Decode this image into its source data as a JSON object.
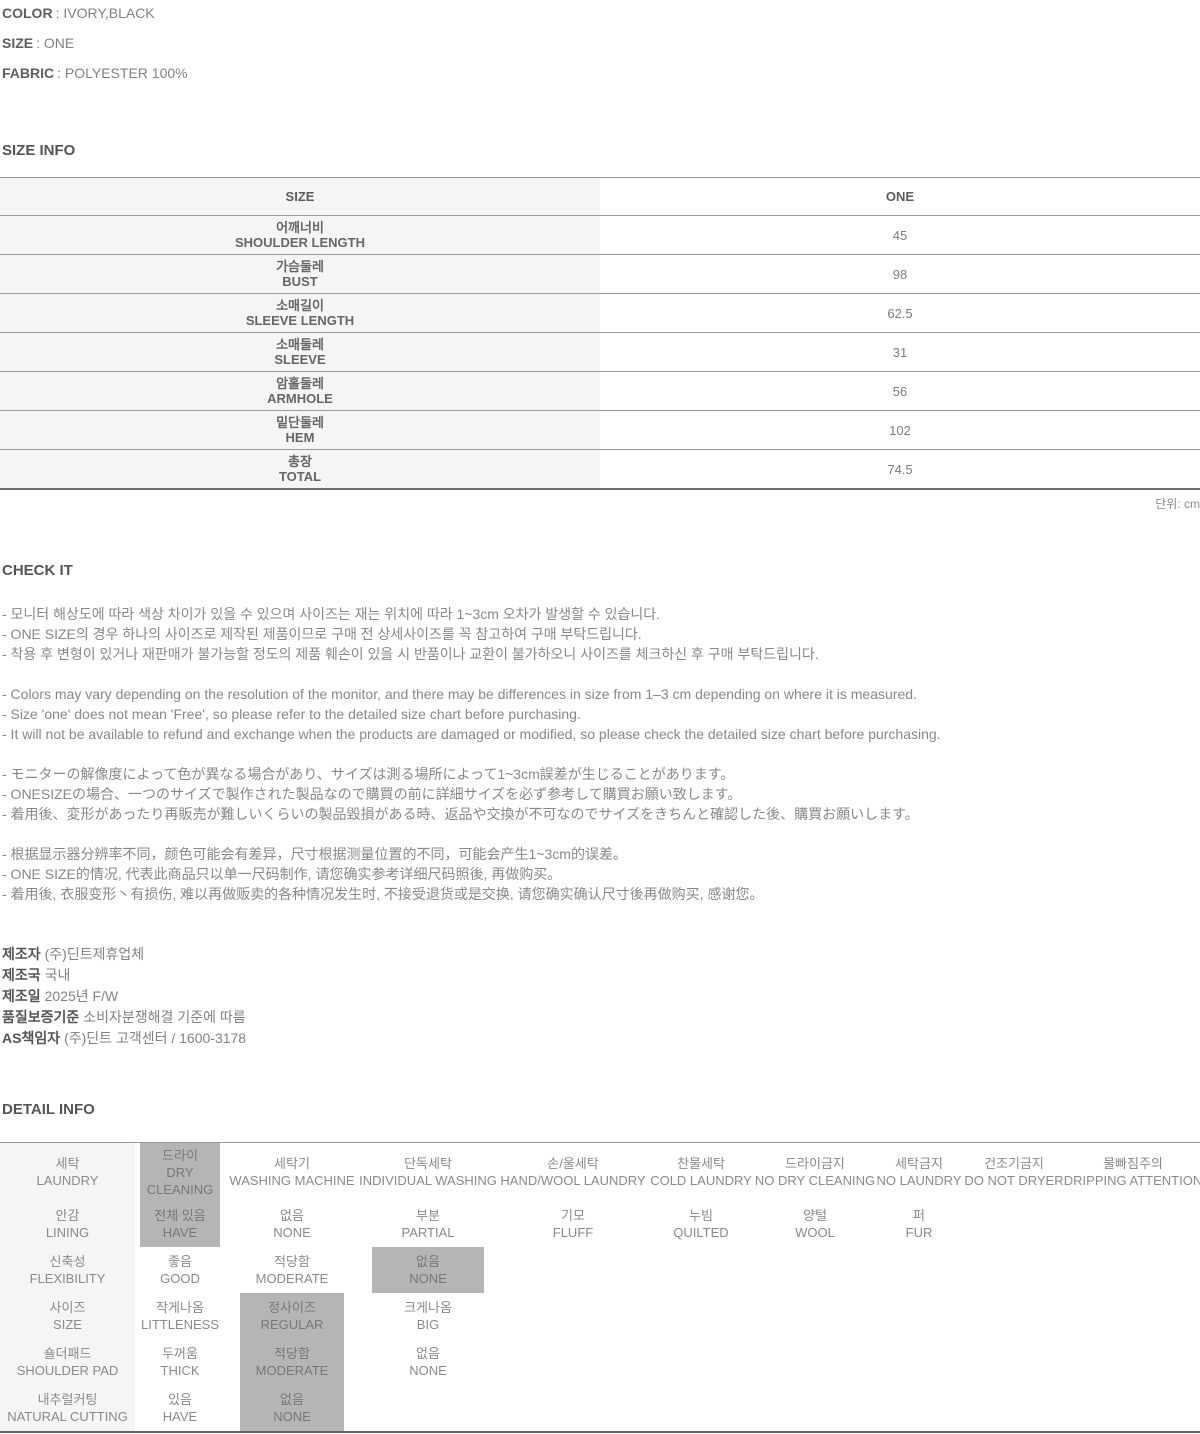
{
  "product_info": {
    "items": [
      {
        "label": "COLOR",
        "value": ": IVORY,BLACK"
      },
      {
        "label": "SIZE",
        "value": ": ONE"
      },
      {
        "label": "FABRIC",
        "value": ": POLYESTER 100%"
      }
    ]
  },
  "size_info": {
    "title": "SIZE INFO",
    "header": {
      "col1": "SIZE",
      "col2": "ONE"
    },
    "rows": [
      {
        "ko": "어깨너비",
        "en": "SHOULDER LENGTH",
        "value": "45"
      },
      {
        "ko": "가슴둘레",
        "en": "BUST",
        "value": "98"
      },
      {
        "ko": "소매길이",
        "en": "SLEEVE LENGTH",
        "value": "62.5"
      },
      {
        "ko": "소매둘레",
        "en": "SLEEVE",
        "value": "31"
      },
      {
        "ko": "암홀둘레",
        "en": "ARMHOLE",
        "value": "56"
      },
      {
        "ko": "밑단둘레",
        "en": "HEM",
        "value": "102"
      },
      {
        "ko": "총장",
        "en": "TOTAL",
        "value": "74.5"
      }
    ],
    "unit_note": "단위: cm"
  },
  "check": {
    "title": "CHECK IT",
    "ko": [
      "- 모니터 해상도에 따라 색상 차이가 있을 수 있으며 사이즈는 재는 위치에 따라 1~3cm 오차가 발생할 수 있습니다.",
      "- ONE SIZE의 경우 하나의 사이즈로 제작된 제품이므로 구매 전 상세사이즈를 꼭 참고하여 구매 부탁드립니다.",
      "- 착용 후 변형이 있거나 재판매가 불가능할 정도의 제품 훼손이 있을 시 반품이나 교환이 불가하오니 사이즈를 체크하신 후 구매 부탁드립니다."
    ],
    "en": [
      "- Colors may vary depending on the resolution of the monitor, and there may be differences in size from 1–3 cm depending on where it is measured.",
      "- Size 'one' does not mean 'Free', so please refer to the detailed size chart before purchasing.",
      "- It will not be available to refund and exchange when the products are damaged or modified, so please check the detailed size chart before purchasing."
    ],
    "ja": [
      "- モニターの解像度によって色が異なる場合があり、サイズは測る場所によって1~3cm誤差が生じることがあります。",
      "- ONESIZEの場合、一つのサイズで製作された製品なので購買の前に詳細サイズを必ず参考して購買お願い致します。",
      "- 着用後、変形があったり再販売が難しいくらいの製品毀損がある時、返品や交換が不可なのでサイズをきちんと確認した後、購買お願いします。"
    ],
    "zh": [
      "- 根据显示器分辨率不同，颜色可能会有差异，尺寸根据测量位置的不同，可能会产生1~3cm的误差。",
      "- ONE SIZE的情况, 代表此商品只以单一尺码制作, 请您确实参考详细尺码照後, 再做购买。",
      "- 着用後, 衣服变形丶有损伤, 难以再做贩卖的各种情况发生时, 不接受退货或是交换, 请您确实确认尺寸後再做购买, 感谢您。"
    ]
  },
  "manufacturer": {
    "items": [
      {
        "label": "제조자",
        "value": "(주)딘트제휴업체"
      },
      {
        "label": "제조국",
        "value": "국내"
      },
      {
        "label": "제조일",
        "value": "2025년 F/W"
      },
      {
        "label": "품질보증기준",
        "value": "소비자분쟁해결 기준에 따름"
      },
      {
        "label": "AS책임자",
        "value": "(주)딘트 고객센터 / 1600-3178"
      }
    ]
  },
  "detail": {
    "title": "DETAIL INFO",
    "rows": [
      {
        "ko": "세탁",
        "en": "LAUNDRY",
        "cells": [
          {
            "ko": "드라이",
            "en": "DRY CLEANING",
            "selected": true
          },
          {
            "ko": "세탁기",
            "en": "WASHING MACHINE"
          },
          {
            "ko": "단독세탁",
            "en": "INDIVIDUAL WASHING"
          },
          {
            "ko": "손/울세탁",
            "en": "HAND/WOOL LAUNDRY"
          },
          {
            "ko": "찬물세탁",
            "en": "COLD LAUNDRY"
          },
          {
            "ko": "드라이금지",
            "en": "NO DRY CLEANING"
          },
          {
            "ko": "세탁금지",
            "en": "NO LAUNDRY"
          },
          {
            "ko": "건조기금지",
            "en": "DO NOT DRYER"
          },
          {
            "ko": "물빠짐주의",
            "en": "DRIPPING ATTENTION"
          }
        ]
      },
      {
        "ko": "안감",
        "en": "LINING",
        "cells": [
          {
            "ko": "전체 있음",
            "en": "HAVE",
            "selected": true
          },
          {
            "ko": "없음",
            "en": "NONE"
          },
          {
            "ko": "부분",
            "en": "PARTIAL"
          },
          {
            "ko": "기모",
            "en": "FLUFF"
          },
          {
            "ko": "누빔",
            "en": "QUILTED"
          },
          {
            "ko": "양털",
            "en": "WOOL"
          },
          {
            "ko": "퍼",
            "en": "FUR"
          }
        ]
      },
      {
        "ko": "신축성",
        "en": "FLEXIBILITY",
        "cells": [
          {
            "ko": "좋음",
            "en": "GOOD"
          },
          {
            "ko": "적당함",
            "en": "MODERATE"
          },
          {
            "ko": "없음",
            "en": "NONE",
            "selected": true
          }
        ]
      },
      {
        "ko": "사이즈",
        "en": "SIZE",
        "cells": [
          {
            "ko": "작게나옴",
            "en": "LITTLENESS"
          },
          {
            "ko": "정사이즈",
            "en": "REGULAR",
            "selected": true
          },
          {
            "ko": "크게나옴",
            "en": "BIG"
          }
        ]
      },
      {
        "ko": "숄더패드",
        "en": "SHOULDER PAD",
        "cells": [
          {
            "ko": "두꺼움",
            "en": "THICK"
          },
          {
            "ko": "적당함",
            "en": "MODERATE",
            "selected": true
          },
          {
            "ko": "없음",
            "en": "NONE"
          }
        ]
      },
      {
        "ko": "내추럴커팅",
        "en": "NATURAL CUTTING",
        "cells": [
          {
            "ko": "있음",
            "en": "HAVE"
          },
          {
            "ko": "없음",
            "en": "NONE",
            "selected": true
          }
        ]
      }
    ]
  },
  "colors": {
    "highlight_gray": "#b5b5b5",
    "row_header_bg": "#f5f5f5",
    "table_border": "#999999",
    "text_gray": "#888888"
  }
}
